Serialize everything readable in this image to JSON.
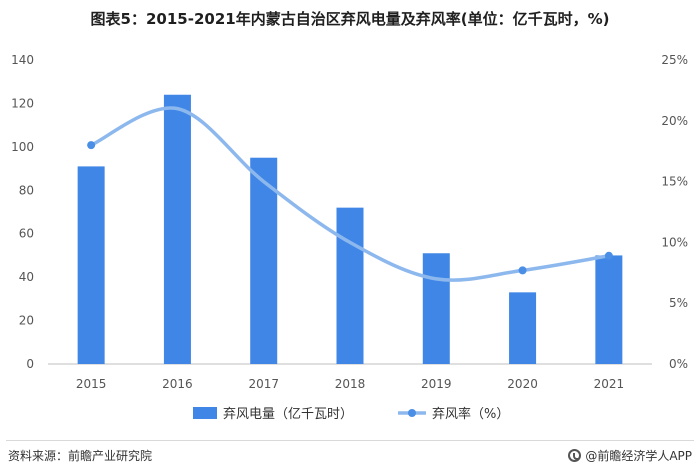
{
  "title": "图表5：2015-2021年内蒙古自治区弃风电量及弃风率(单位：亿千瓦时，%)",
  "footer": {
    "source": "资料来源：前瞻产业研究院",
    "brand": "@前瞻经济学人APP",
    "brand_icon": "qianzhan-logo-icon"
  },
  "colors": {
    "bar": "#3f86e6",
    "line": "#8db8ee",
    "marker": "#4a8ee6"
  },
  "chart_data": {
    "type": "bar+line",
    "categories": [
      "2015",
      "2016",
      "2017",
      "2018",
      "2019",
      "2020",
      "2021"
    ],
    "series": [
      {
        "name": "弃风电量（亿千瓦时）",
        "type": "bar",
        "axis": "left",
        "values": [
          91,
          124,
          95,
          72,
          51,
          33,
          50
        ]
      },
      {
        "name": "弃风率（%）",
        "type": "line",
        "axis": "right",
        "values": [
          18,
          21,
          15,
          10,
          7,
          7.7,
          8.9
        ]
      }
    ],
    "y_left": {
      "min": 0,
      "max": 140,
      "ticks": [
        "0",
        "20",
        "40",
        "60",
        "80",
        "100",
        "120",
        "140"
      ]
    },
    "y_right": {
      "min": 0,
      "max": 25,
      "ticks": [
        "0%",
        "5%",
        "10%",
        "15%",
        "20%",
        "25%"
      ]
    },
    "grid": false,
    "legend_position": "bottom"
  }
}
